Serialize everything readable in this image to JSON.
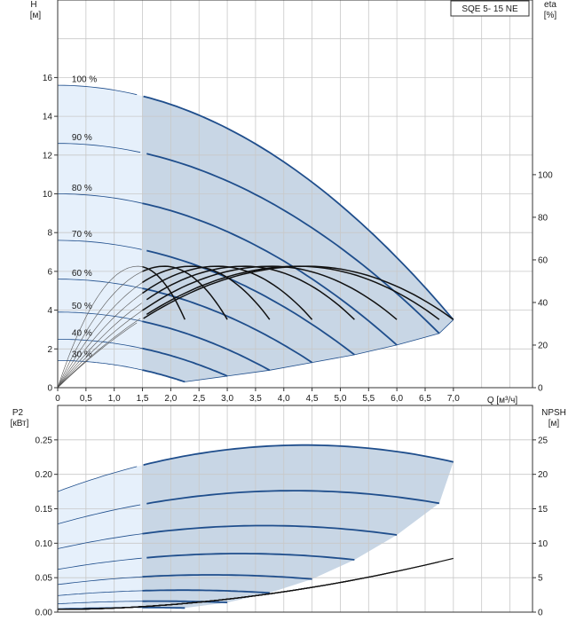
{
  "chart_data": [
    {
      "type": "line",
      "title": "SQE 5- 15 NE",
      "left_axis": {
        "label": "H",
        "unit": "[м]",
        "range": [
          0,
          20
        ],
        "ticks": [
          0,
          2,
          4,
          6,
          8,
          10,
          12,
          14,
          16
        ]
      },
      "right_axis": {
        "label": "eta",
        "unit": "[%]",
        "range": [
          0,
          182
        ],
        "ticks": [
          0,
          20,
          40,
          60,
          80,
          100
        ]
      },
      "x_axis": {
        "label": "Q [м³/ч]",
        "range": [
          0,
          8.4
        ],
        "ticks": [
          0,
          0.5,
          1.0,
          1.5,
          2.0,
          2.5,
          3.0,
          3.5,
          4.0,
          4.5,
          5.0,
          5.5,
          6.0,
          6.5,
          7.0
        ],
        "tick_labels": [
          "0",
          "0,5",
          "1,0",
          "1,5",
          "2,0",
          "2,5",
          "3,0",
          "3,5",
          "4,0",
          "4,5",
          "5,0",
          "5,5",
          "6,0",
          "6,5",
          "7,0"
        ]
      },
      "speed_labels": [
        "100 %",
        "90 %",
        "80 %",
        "70 %",
        "60 %",
        "50 %",
        "40 %",
        "30 %"
      ],
      "series": [
        {
          "speed": 100,
          "H0": 15.6,
          "Qmax": 7.0,
          "Hend": 3.5
        },
        {
          "speed": 90,
          "H0": 12.6,
          "Qmax": 6.75,
          "Hend": 2.8
        },
        {
          "speed": 80,
          "H0": 10.0,
          "Qmax": 6.0,
          "Hend": 2.2
        },
        {
          "speed": 70,
          "H0": 7.6,
          "Qmax": 5.25,
          "Hend": 1.7
        },
        {
          "speed": 60,
          "H0": 5.6,
          "Qmax": 4.5,
          "Hend": 1.3
        },
        {
          "speed": 50,
          "H0": 3.9,
          "Qmax": 3.75,
          "Hend": 0.9
        },
        {
          "speed": 40,
          "H0": 2.5,
          "Qmax": 3.0,
          "Hend": 0.6
        },
        {
          "speed": 30,
          "H0": 1.4,
          "Qmax": 2.25,
          "Hend": 0.3
        }
      ],
      "efficiency_peak": 57,
      "efficiency_end": 32
    },
    {
      "type": "line",
      "left_axis": {
        "label": "P2",
        "unit": "[кВт]",
        "range": [
          0,
          0.3
        ],
        "ticks": [
          0,
          0.05,
          0.1,
          0.15,
          0.2,
          0.25
        ],
        "tick_labels": [
          "0.00",
          "0.05",
          "0.10",
          "0.15",
          "0.20",
          "0.25"
        ]
      },
      "right_axis": {
        "label": "NPSH",
        "unit": "[м]",
        "range": [
          0,
          30
        ],
        "ticks": [
          0,
          5,
          10,
          15,
          20,
          25
        ]
      },
      "series": [
        {
          "speed": 100,
          "P0": 0.175,
          "Pend": 0.218
        },
        {
          "speed": 90,
          "P0": 0.128,
          "Pend": 0.158
        },
        {
          "speed": 80,
          "P0": 0.092,
          "Pend": 0.112
        },
        {
          "speed": 70,
          "P0": 0.062,
          "Pend": 0.076
        },
        {
          "speed": 60,
          "P0": 0.04,
          "Pend": 0.048
        },
        {
          "speed": 50,
          "P0": 0.024,
          "Pend": 0.028
        },
        {
          "speed": 40,
          "P0": 0.012,
          "Pend": 0.014
        },
        {
          "speed": 30,
          "P0": 0.005,
          "Pend": 0.006
        }
      ],
      "npsh_end": 7.8
    }
  ],
  "colors": {
    "curve": "#1f4e8c",
    "curve_dark": "#111111",
    "fill_main": "#c8d6e5",
    "fill_light": "#e6f0fb",
    "grid": "#c8c8c8",
    "axis": "#333333"
  }
}
